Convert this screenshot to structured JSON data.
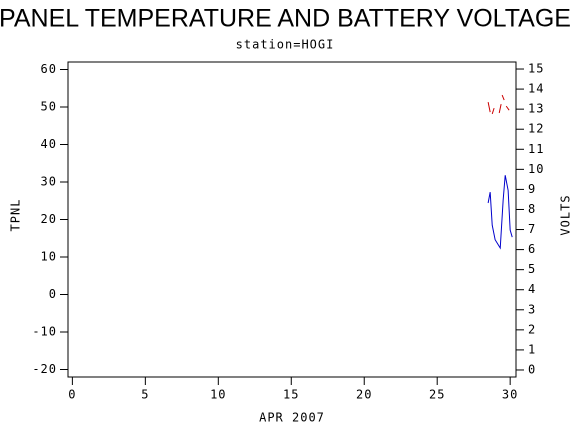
{
  "chart_data": {
    "type": "line",
    "title": "PANEL TEMPERATURE AND BATTERY VOLTAGE",
    "subtitle": "station=HOGI",
    "x_label": "APR 2007",
    "y_label": "TPNL",
    "y2_label": "VOLTS",
    "xlim": [
      -0.3,
      30.4
    ],
    "xticks": [
      0,
      5,
      10,
      15,
      20,
      25,
      30
    ],
    "ylim": [
      -22,
      62
    ],
    "yticks": [
      -20,
      -10,
      0,
      10,
      20,
      30,
      40,
      50,
      60
    ],
    "y2lim": [
      -0.35,
      15.35
    ],
    "y2ticks": [
      0,
      1,
      2,
      3,
      4,
      5,
      6,
      7,
      8,
      9,
      10,
      11,
      12,
      13,
      14,
      15
    ],
    "series": [
      {
        "color": "#0000cc",
        "x": [
          28.49,
          28.63,
          28.77,
          28.97,
          29.32,
          29.52,
          29.66,
          29.86,
          30.0,
          30.14
        ],
        "values": [
          24.4,
          27.3,
          18.5,
          14.6,
          12.4,
          25.2,
          31.8,
          27.8,
          17.2,
          15.3
        ]
      },
      {
        "color": "#cc0000",
        "axis": "y2",
        "x": [
          28.49,
          28.63,
          28.7,
          28.77,
          28.9,
          29.1,
          29.25,
          29.38,
          29.42,
          29.45,
          29.59,
          29.66,
          29.73,
          29.93
        ],
        "values": [
          13.35,
          12.85,
          null,
          12.76,
          13.05,
          null,
          12.81,
          13.25,
          null,
          13.7,
          13.45,
          null,
          13.15,
          12.95
        ]
      }
    ]
  }
}
